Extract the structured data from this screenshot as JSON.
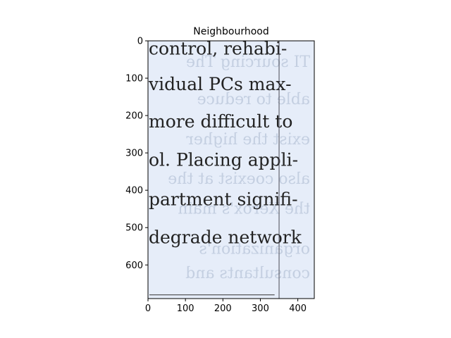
{
  "figure": {
    "title": "Neighbourhood",
    "x_ticks": [
      "0",
      "100",
      "200",
      "300",
      "400"
    ],
    "y_ticks": [
      "0",
      "100",
      "200",
      "300",
      "400",
      "500",
      "600"
    ],
    "x_tick_values": [
      0,
      100,
      200,
      300,
      400
    ],
    "y_tick_values": [
      0,
      100,
      200,
      300,
      400,
      500,
      600
    ],
    "x_range": [
      0,
      444
    ],
    "y_range": [
      0,
      690
    ]
  },
  "scan": {
    "lines": [
      "control, rehabi-",
      "vidual PCs max-",
      "more difficult to",
      "ol. Placing appli-",
      "partment signifi-",
      "degrade network"
    ],
    "line_rows": [
      20,
      115,
      215,
      318,
      423,
      525
    ],
    "ghost_lines": [
      "TI sourcing The",
      "able to reduce",
      "exist the higher",
      "also coexist at the",
      "the Xerox's main",
      "organization's",
      "consultants and"
    ],
    "ghost_rows": [
      55,
      155,
      262,
      368,
      448,
      555,
      620
    ],
    "paper_color": "#e6edf9",
    "ink_color": "#222222",
    "fold_line_x": 350,
    "rule_bottom_y": 680
  }
}
